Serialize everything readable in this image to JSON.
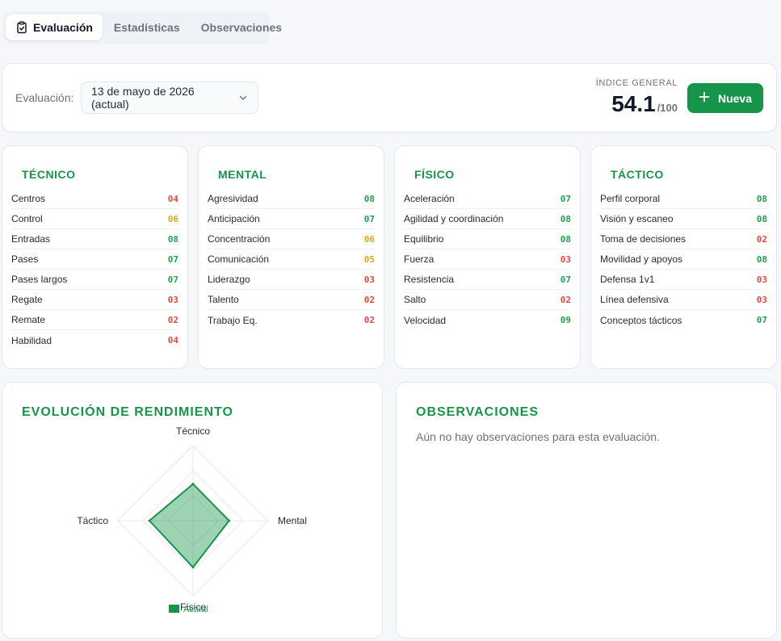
{
  "tabs": [
    {
      "label": "Evaluación",
      "icon": "clipboard-check-icon",
      "active": true
    },
    {
      "label": "Estadísticas",
      "active": false
    },
    {
      "label": "Observaciones",
      "active": false
    }
  ],
  "header": {
    "eval_label": "Evaluación:",
    "date_selected": "13 de mayo de 2026 (actual)",
    "indice_label": "ÍNDICE GENERAL",
    "indice_value": "54.1",
    "indice_max": "/100",
    "new_button": "Nueva"
  },
  "colors": {
    "accent": "#16954a",
    "score_good": "#22a14f",
    "score_mid": "#e0a619",
    "score_bad": "#e2483d"
  },
  "categories": [
    {
      "title": "TÉCNICO",
      "items": [
        {
          "label": "Centros",
          "score": "04"
        },
        {
          "label": "Control",
          "score": "06"
        },
        {
          "label": "Entradas",
          "score": "08"
        },
        {
          "label": "Pases",
          "score": "07"
        },
        {
          "label": "Pases largos",
          "score": "07"
        },
        {
          "label": "Regate",
          "score": "03"
        },
        {
          "label": "Remate",
          "score": "02"
        },
        {
          "label": "Habilidad",
          "score": "04"
        }
      ]
    },
    {
      "title": "MENTAL",
      "items": [
        {
          "label": "Agresividad",
          "score": "08"
        },
        {
          "label": "Anticipación",
          "score": "07"
        },
        {
          "label": "Concentración",
          "score": "06"
        },
        {
          "label": "Comunicación",
          "score": "05"
        },
        {
          "label": "Liderazgo",
          "score": "03"
        },
        {
          "label": "Talento",
          "score": "02"
        },
        {
          "label": "Trabajo Eq.",
          "score": "02"
        }
      ]
    },
    {
      "title": "FÍSICO",
      "items": [
        {
          "label": "Aceleración",
          "score": "07"
        },
        {
          "label": "Agilidad y coordinación",
          "score": "08"
        },
        {
          "label": "Equilibrio",
          "score": "08"
        },
        {
          "label": "Fuerza",
          "score": "03"
        },
        {
          "label": "Resistencia",
          "score": "07"
        },
        {
          "label": "Salto",
          "score": "02"
        },
        {
          "label": "Velocidad",
          "score": "09"
        }
      ]
    },
    {
      "title": "TÁCTICO",
      "items": [
        {
          "label": "Perfil corporal",
          "score": "08"
        },
        {
          "label": "Visión y escaneo",
          "score": "08"
        },
        {
          "label": "Toma de decisiones",
          "score": "02"
        },
        {
          "label": "Movilidad y apoyos",
          "score": "08"
        },
        {
          "label": "Defensa 1v1",
          "score": "03"
        },
        {
          "label": "Línea defensiva",
          "score": "03"
        },
        {
          "label": "Conceptos tácticos",
          "score": "07"
        }
      ]
    }
  ],
  "evolution": {
    "title": "EVOLUCIÓN DE RENDIMIENTO"
  },
  "observations": {
    "title": "OBSERVACIONES",
    "empty_text": "Aún no hay observaciones para esta evaluación."
  },
  "chart_data": {
    "type": "radar",
    "axes": [
      "Técnico",
      "Mental",
      "Físico",
      "Táctico"
    ],
    "series": [
      {
        "name": "Actual",
        "values": [
          49,
          48,
          62,
          58
        ],
        "color": "#16954a"
      }
    ],
    "range": [
      0,
      100
    ],
    "legend": "bottom"
  }
}
